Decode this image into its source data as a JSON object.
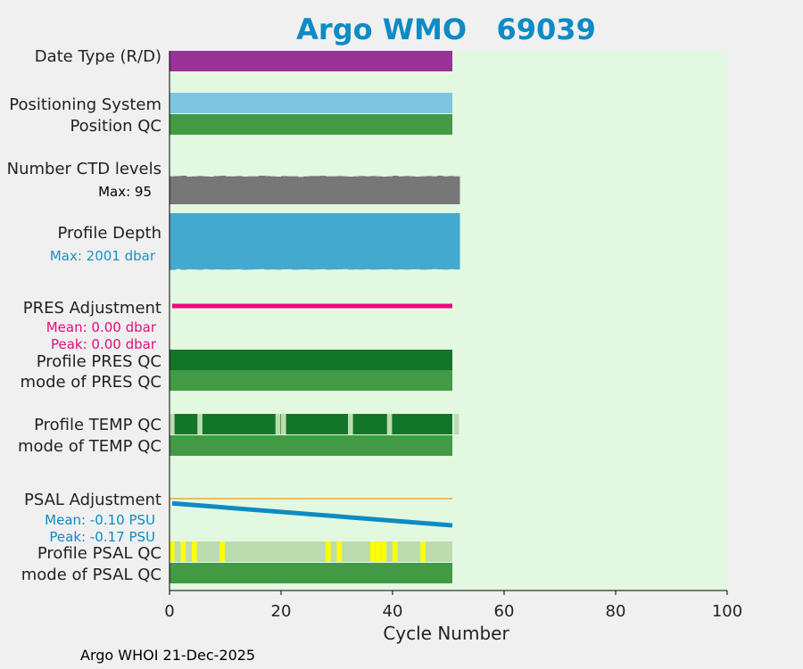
{
  "chart_data": {
    "type": "bar",
    "title": "Argo WMO   69039",
    "xlabel": "Cycle Number",
    "xlim": [
      0,
      100
    ],
    "xticks": [
      0,
      20,
      40,
      60,
      80,
      100
    ],
    "n_cycles": 52,
    "plot_background": "#e3f8e0",
    "rows": {
      "date_type": {
        "label": "Date Type (R/D)",
        "color": "#993399",
        "value": "R"
      },
      "positioning": {
        "label": "Positioning System",
        "color": "#7ec6df"
      },
      "position_qc": {
        "label": "Position QC",
        "color": "#439a45"
      },
      "ctd_levels": {
        "label": "Number CTD levels",
        "max_label": "Max: 95",
        "color": "#777777",
        "max": 95,
        "values": [
          93,
          94,
          95,
          92,
          93,
          94,
          93,
          92,
          94,
          95,
          93,
          93,
          94,
          92,
          93,
          93,
          95,
          94,
          93,
          92,
          94,
          93,
          93,
          91,
          93,
          94,
          94,
          95,
          93,
          93,
          94,
          93,
          92,
          93,
          94,
          93,
          94,
          93,
          92,
          93,
          95,
          93,
          94,
          93,
          92,
          93,
          94,
          93,
          95,
          93,
          94,
          93
        ]
      },
      "profile_depth": {
        "label": "Profile Depth",
        "max_label": "Max: 2001 dbar",
        "label_color": "#1f8fbf",
        "color": "#43a9cf",
        "max": 2001,
        "values": [
          1990,
          1960,
          1985,
          1970,
          1975,
          1982,
          1965,
          1978,
          1970,
          1975,
          1980,
          1972,
          1968,
          1984,
          1976,
          1970,
          1962,
          1978,
          1974,
          1980,
          1970,
          1966,
          1982,
          1975,
          1970,
          1978,
          1972,
          1966,
          1980,
          1974,
          1970,
          1962,
          1978,
          1972,
          1976,
          1968,
          1980,
          1974,
          1970,
          1965,
          1978,
          1972,
          1976,
          1970,
          1968,
          1980,
          1974,
          1962,
          1970,
          1976,
          1966,
          1972
        ]
      },
      "pres_adjustment": {
        "label": "PRES Adjustment",
        "mean_label": "Mean: 0.00 dbar",
        "peak_label": "Peak: 0.00 dbar",
        "color": "#e8087c",
        "start": 0.0,
        "end": 0.0
      },
      "profile_pres_qc": {
        "label": "Profile PRES QC",
        "color": "#137527"
      },
      "mode_pres_qc": {
        "label": "mode of PRES QC",
        "color": "#439a45"
      },
      "profile_temp_qc": {
        "label": "Profile TEMP QC",
        "color": "#137527",
        "gap_color": "#bcdcaf",
        "gap_cycles": [
          0,
          5,
          19,
          20,
          32,
          39,
          51
        ]
      },
      "mode_temp_qc": {
        "label": "mode of TEMP QC",
        "color": "#439a45"
      },
      "psal_adjustment": {
        "label": "PSAL Adjustment",
        "mean_label": "Mean: -0.10 PSU",
        "peak_label": "Peak: -0.17 PSU",
        "color": "#0d8bc4",
        "ref_color": "#f0a830",
        "start": -0.03,
        "end": -0.17
      },
      "profile_psal_qc": {
        "label": "Profile PSAL QC",
        "color": "#bcdcaf",
        "flag_color": "#ffff00",
        "flag_cycles": [
          0,
          2,
          4,
          9,
          28,
          30,
          36,
          37,
          38,
          40,
          45
        ]
      },
      "mode_psal_qc": {
        "label": "mode of PSAL QC",
        "color": "#439a45"
      }
    }
  },
  "footer": "Argo WHOI 21-Dec-2025"
}
